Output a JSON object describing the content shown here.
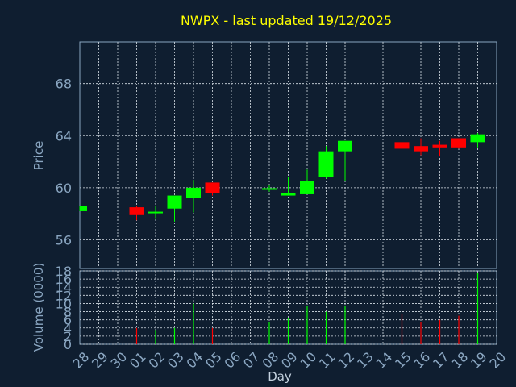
{
  "chart_data": {
    "type": "candlestick",
    "title": "NWPX - last updated 19/12/2025",
    "xlabel": "Day",
    "ylabel_price": "Price",
    "ylabel_volume": "Volume (0000)",
    "up_color": "#00ff00",
    "down_color": "#ff0000",
    "background": "#0f1e30",
    "price_ylim": [
      53.8,
      71.2
    ],
    "price_ticks": [
      "56",
      "60",
      "64",
      "68"
    ],
    "volume_ylim": [
      0,
      18
    ],
    "volume_ticks": [
      "0",
      "2",
      "4",
      "6",
      "8",
      "10",
      "12",
      "14",
      "16",
      "18"
    ],
    "x_tick_labels": [
      "28",
      "29",
      "30",
      "01",
      "02",
      "03",
      "04",
      "05",
      "06",
      "07",
      "08",
      "09",
      "10",
      "11",
      "12",
      "13",
      "14",
      "15",
      "16",
      "17",
      "18",
      "19",
      "20"
    ],
    "grid": true,
    "candles": [
      {
        "day": "28",
        "open": 58.2,
        "close": 58.6,
        "high": 58.6,
        "low": 58.2,
        "volume": 0
      },
      {
        "day": "01",
        "open": 58.5,
        "close": 57.9,
        "high": 58.6,
        "low": 57.5,
        "volume": 4
      },
      {
        "day": "02",
        "open": 58.1,
        "close": 58.1,
        "high": 58.6,
        "low": 57.6,
        "volume": 3.5
      },
      {
        "day": "03",
        "open": 58.4,
        "close": 59.4,
        "high": 59.4,
        "low": 57.4,
        "volume": 4
      },
      {
        "day": "04",
        "open": 59.2,
        "close": 60.0,
        "high": 60.6,
        "low": 58.1,
        "volume": 10
      },
      {
        "day": "05",
        "open": 60.4,
        "close": 59.6,
        "high": 60.4,
        "low": 59.4,
        "volume": 4
      },
      {
        "day": "08",
        "open": 59.9,
        "close": 59.9,
        "high": 60.2,
        "low": 59.7,
        "volume": 5.5
      },
      {
        "day": "09",
        "open": 59.4,
        "close": 59.6,
        "high": 60.8,
        "low": 59.4,
        "volume": 6.5
      },
      {
        "day": "10",
        "open": 59.5,
        "close": 60.5,
        "high": 61.4,
        "low": 59.5,
        "volume": 9.5
      },
      {
        "day": "11",
        "open": 60.8,
        "close": 62.8,
        "high": 63.2,
        "low": 60.7,
        "volume": 8
      },
      {
        "day": "12",
        "open": 62.8,
        "close": 63.6,
        "high": 63.6,
        "low": 60.5,
        "volume": 9.5
      },
      {
        "day": "15",
        "open": 63.5,
        "close": 63.0,
        "high": 63.6,
        "low": 62.2,
        "volume": 7.5
      },
      {
        "day": "16",
        "open": 63.2,
        "close": 62.8,
        "high": 63.8,
        "low": 62.5,
        "volume": 5.5
      },
      {
        "day": "17",
        "open": 63.3,
        "close": 63.1,
        "high": 63.6,
        "low": 62.4,
        "volume": 6
      },
      {
        "day": "18",
        "open": 63.8,
        "close": 63.1,
        "high": 63.8,
        "low": 63.0,
        "volume": 7
      },
      {
        "day": "19",
        "open": 63.5,
        "close": 64.1,
        "high": 64.2,
        "low": 63.1,
        "volume": 17.5
      }
    ]
  }
}
